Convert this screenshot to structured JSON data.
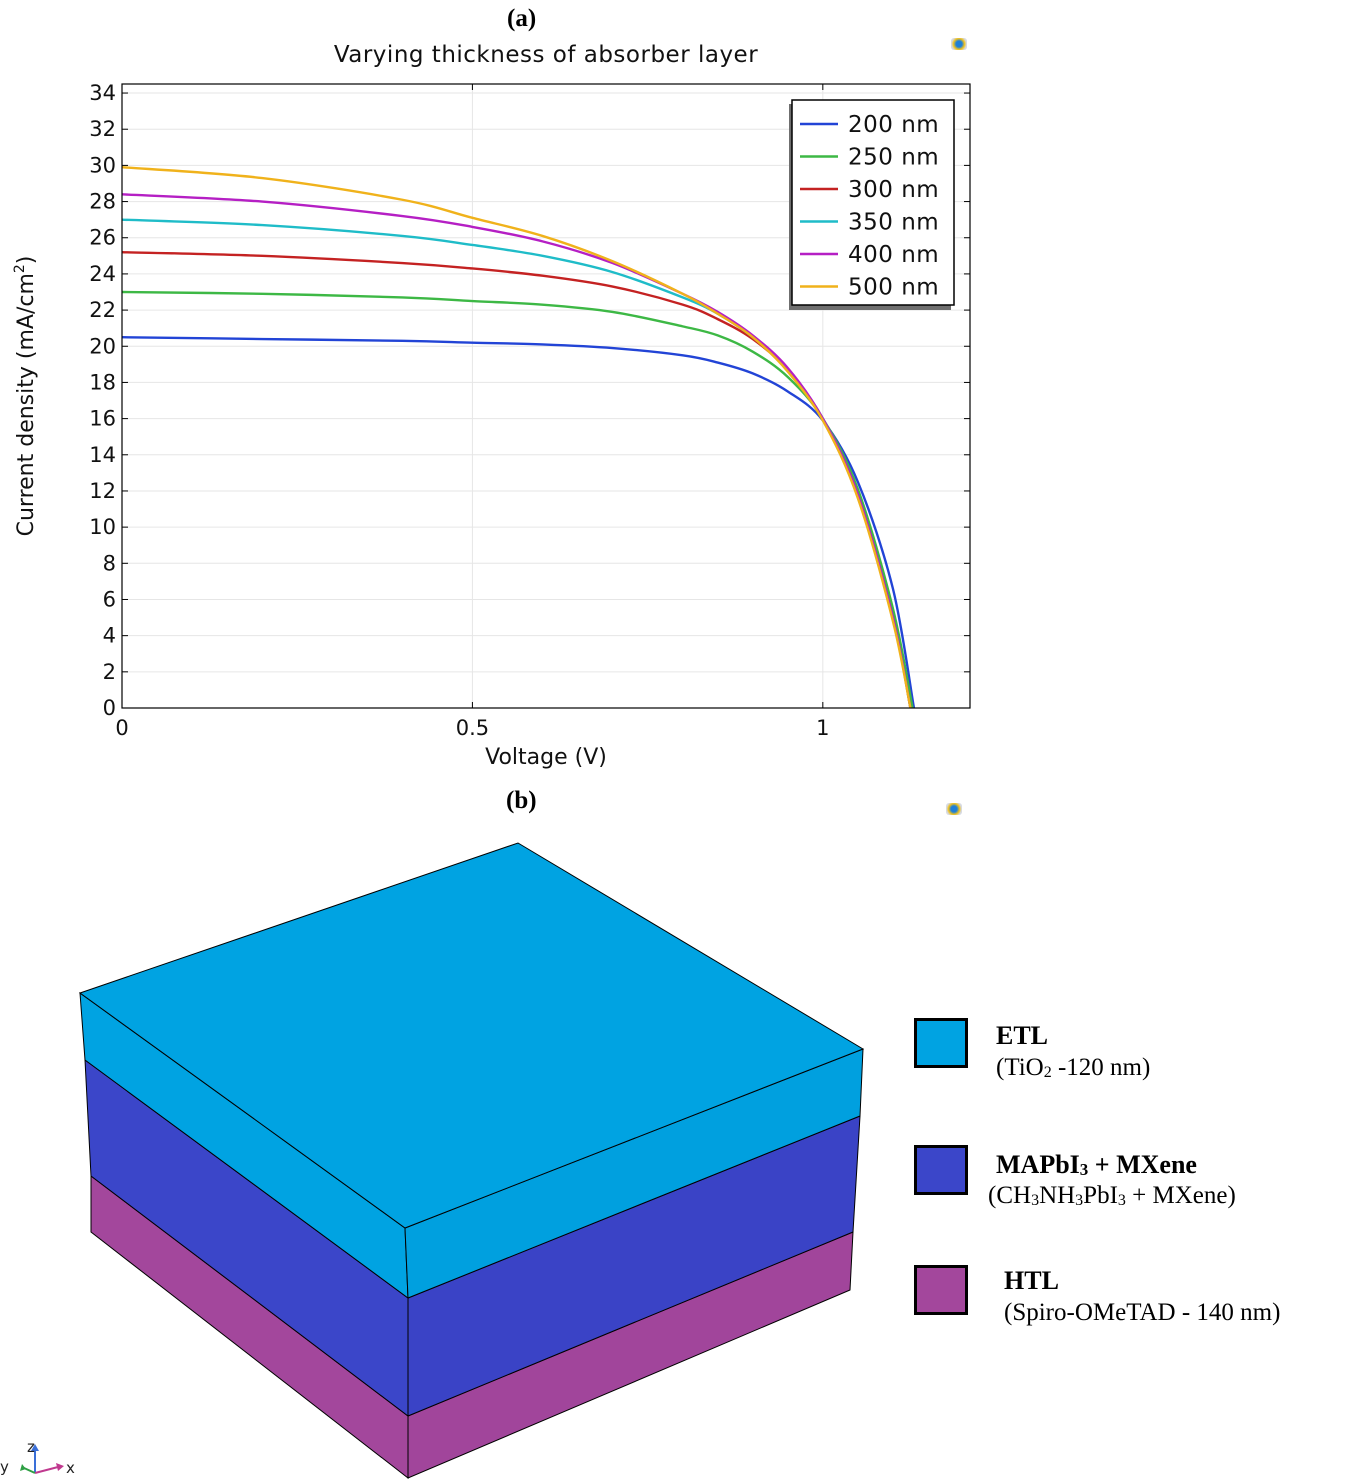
{
  "panels": {
    "a": "(a)",
    "b": "(b)"
  },
  "chart_data": {
    "type": "line",
    "title": "Varying thickness of absorber layer",
    "xlabel": "Voltage (V)",
    "ylabel": "Current density  (mA/cm",
    "ylabel_sup": "2",
    "ylabel_close": ")",
    "xlim": [
      0,
      1.21
    ],
    "ylim": [
      0,
      34.5
    ],
    "xticks": [
      0,
      0.5,
      1
    ],
    "xtick_labels": [
      "0",
      "0.5",
      "1"
    ],
    "yticks": [
      0,
      2,
      4,
      6,
      8,
      10,
      12,
      14,
      16,
      18,
      20,
      22,
      24,
      26,
      28,
      30,
      32,
      34
    ],
    "grid": true,
    "legend_position": "top-right",
    "series": [
      {
        "name": "200 nm",
        "color": "#2244d6",
        "x": [
          0,
          0.2,
          0.4,
          0.5,
          0.6,
          0.7,
          0.8,
          0.85,
          0.9,
          0.95,
          1.0,
          1.05,
          1.1,
          1.13
        ],
        "y": [
          20.5,
          20.4,
          20.3,
          20.2,
          20.1,
          19.9,
          19.5,
          19.1,
          18.5,
          17.5,
          15.9,
          12.5,
          6.6,
          0
        ]
      },
      {
        "name": "250 nm",
        "color": "#3db845",
        "x": [
          0,
          0.2,
          0.4,
          0.5,
          0.6,
          0.7,
          0.8,
          0.85,
          0.9,
          0.95,
          1.0,
          1.05,
          1.1,
          1.128
        ],
        "y": [
          23.0,
          22.9,
          22.7,
          22.5,
          22.3,
          21.9,
          21.1,
          20.6,
          19.7,
          18.3,
          16.0,
          12.1,
          5.5,
          0
        ]
      },
      {
        "name": "300 nm",
        "color": "#c42222",
        "x": [
          0,
          0.2,
          0.4,
          0.5,
          0.6,
          0.7,
          0.8,
          0.85,
          0.9,
          0.95,
          1.0,
          1.05,
          1.1,
          1.125
        ],
        "y": [
          25.2,
          25.0,
          24.6,
          24.3,
          23.9,
          23.3,
          22.3,
          21.5,
          20.4,
          18.7,
          16.0,
          11.8,
          5.0,
          0
        ]
      },
      {
        "name": "350 nm",
        "color": "#1fbcc8",
        "x": [
          0,
          0.2,
          0.4,
          0.5,
          0.6,
          0.7,
          0.8,
          0.85,
          0.9,
          0.95,
          1.0,
          1.05,
          1.1,
          1.125
        ],
        "y": [
          27.0,
          26.7,
          26.1,
          25.6,
          25.0,
          24.1,
          22.7,
          21.8,
          20.5,
          18.7,
          16.0,
          11.8,
          5.0,
          0
        ]
      },
      {
        "name": "400 nm",
        "color": "#b51fc4",
        "x": [
          0,
          0.2,
          0.4,
          0.5,
          0.6,
          0.7,
          0.8,
          0.85,
          0.9,
          0.95,
          1.0,
          1.05,
          1.1,
          1.125
        ],
        "y": [
          28.4,
          28.0,
          27.2,
          26.6,
          25.8,
          24.6,
          22.9,
          21.9,
          20.6,
          18.8,
          16.0,
          11.8,
          5.0,
          0
        ]
      },
      {
        "name": "500 nm",
        "color": "#f0b21b",
        "x": [
          0,
          0.2,
          0.4,
          0.5,
          0.6,
          0.7,
          0.8,
          0.85,
          0.9,
          0.95,
          1.0,
          1.05,
          1.1,
          1.125
        ],
        "y": [
          29.9,
          29.3,
          28.1,
          27.1,
          26.1,
          24.7,
          22.9,
          21.8,
          20.5,
          18.6,
          15.9,
          11.6,
          4.8,
          0
        ]
      }
    ]
  },
  "cube": {
    "colors": {
      "etl_top": "#00a3e2",
      "etl_front": "#00a3e2",
      "etl_side": "#00a0df",
      "abs_front": "#3b46c9",
      "abs_side": "#3a43c6",
      "htl_front": "#a3479c",
      "htl_side": "#a1459b"
    },
    "legend": [
      {
        "name": "ETL",
        "desc_pre": "(TiO",
        "desc_sub": "2",
        "desc_post": " -120 nm)",
        "color": "#00a3e2"
      },
      {
        "name_pre": "MAPbI",
        "name_sub": "3",
        "name_post": " + MXene",
        "desc_pre": "(CH",
        "desc_sub1": "3",
        "desc_mid1": "NH",
        "desc_sub2": "3",
        "desc_mid2": "PbI",
        "desc_sub3": "3",
        "desc_post": " + MXene)",
        "color": "#3b46c9"
      },
      {
        "name": "HTL",
        "desc": "(Spiro-OMeTAD - 140 nm)",
        "color": "#a3479c"
      }
    ],
    "axes": {
      "z": "z",
      "y": "y",
      "x": "x"
    }
  }
}
